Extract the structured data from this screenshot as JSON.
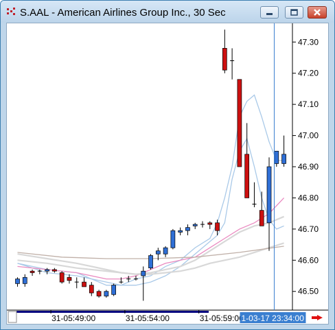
{
  "window": {
    "title": "S.AAL - American Airlines Group Inc., 30 Sec",
    "app_icon": "chart-app-icon",
    "controls": [
      "minimize-icon",
      "maximize-icon",
      "close-icon"
    ]
  },
  "colors": {
    "up_candle": "#2f6fd6",
    "down_candle": "#cc1010",
    "ma_light_blue": "#a9c9e8",
    "ma_pink": "#ea8ac0",
    "ma_gray": "#d8d8d8",
    "ma_brown": "#c0b0a8",
    "cursor_line": "#3a7fd0",
    "time_badge_bg": "#3a7fd0",
    "scroll_arrow": "#e01010"
  },
  "chart_data": {
    "type": "candlestick",
    "ylim": [
      46.44,
      47.36
    ],
    "yticks": [
      "47.30",
      "47.20",
      "47.10",
      "47.00",
      "46.90",
      "46.80",
      "46.70",
      "46.60",
      "46.50"
    ],
    "xticks": [
      "31-05:49:00",
      "31-05:54:00",
      "31-05:59:00"
    ],
    "xtick_index": [
      4.6,
      14.6,
      24.6
    ],
    "cursor_index": 34.6,
    "cursor_time": "1-03-17 23:34:00",
    "candles": [
      {
        "o": 46.525,
        "h": 46.545,
        "l": 46.515,
        "c": 46.54
      },
      {
        "o": 46.525,
        "h": 46.555,
        "l": 46.515,
        "c": 46.545
      },
      {
        "o": 46.565,
        "h": 46.57,
        "l": 46.55,
        "c": 46.56
      },
      {
        "o": 46.565,
        "h": 46.57,
        "l": 46.555,
        "c": 46.565
      },
      {
        "o": 46.565,
        "h": 46.575,
        "l": 46.555,
        "c": 46.57
      },
      {
        "o": 46.57,
        "h": 46.575,
        "l": 46.56,
        "c": 46.565
      },
      {
        "o": 46.56,
        "h": 46.565,
        "l": 46.525,
        "c": 46.53
      },
      {
        "o": 46.545,
        "h": 46.555,
        "l": 46.525,
        "c": 46.535
      },
      {
        "o": 46.53,
        "h": 46.545,
        "l": 46.51,
        "c": 46.53
      },
      {
        "o": 46.53,
        "h": 46.545,
        "l": 46.515,
        "c": 46.515
      },
      {
        "o": 46.52,
        "h": 46.53,
        "l": 46.485,
        "c": 46.495
      },
      {
        "o": 46.5,
        "h": 46.505,
        "l": 46.48,
        "c": 46.485
      },
      {
        "o": 46.485,
        "h": 46.505,
        "l": 46.48,
        "c": 46.5
      },
      {
        "o": 46.49,
        "h": 46.525,
        "l": 46.485,
        "c": 46.52
      },
      {
        "o": 46.53,
        "h": 46.545,
        "l": 46.525,
        "c": 46.53
      },
      {
        "o": 46.54,
        "h": 46.55,
        "l": 46.53,
        "c": 46.54
      },
      {
        "o": 46.54,
        "h": 46.55,
        "l": 46.535,
        "c": 46.54
      },
      {
        "o": 46.55,
        "h": 46.58,
        "l": 46.47,
        "c": 46.565
      },
      {
        "o": 46.575,
        "h": 46.62,
        "l": 46.57,
        "c": 46.615
      },
      {
        "o": 46.62,
        "h": 46.64,
        "l": 46.6,
        "c": 46.63
      },
      {
        "o": 46.62,
        "h": 46.645,
        "l": 46.61,
        "c": 46.64
      },
      {
        "o": 46.64,
        "h": 46.7,
        "l": 46.635,
        "c": 46.695
      },
      {
        "o": 46.69,
        "h": 46.705,
        "l": 46.68,
        "c": 46.695
      },
      {
        "o": 46.695,
        "h": 46.715,
        "l": 46.68,
        "c": 46.705
      },
      {
        "o": 46.71,
        "h": 46.72,
        "l": 46.7,
        "c": 46.715
      },
      {
        "o": 46.715,
        "h": 46.725,
        "l": 46.705,
        "c": 46.715
      },
      {
        "o": 46.72,
        "h": 46.725,
        "l": 46.7,
        "c": 46.715
      },
      {
        "o": 46.72,
        "h": 46.73,
        "l": 46.68,
        "c": 46.695
      },
      {
        "o": 47.28,
        "h": 47.34,
        "l": 47.2,
        "c": 47.21
      },
      {
        "o": 47.24,
        "h": 47.28,
        "l": 47.18,
        "c": 47.24
      },
      {
        "o": 47.18,
        "h": 47.18,
        "l": 46.9,
        "c": 46.9
      },
      {
        "o": 46.94,
        "h": 47.04,
        "l": 46.8,
        "c": 46.8
      },
      {
        "o": 46.78,
        "h": 46.85,
        "l": 46.77,
        "c": 46.78
      },
      {
        "o": 46.76,
        "h": 46.82,
        "l": 46.71,
        "c": 46.71
      },
      {
        "o": 46.72,
        "h": 46.93,
        "l": 46.63,
        "c": 46.9
      },
      {
        "o": 46.91,
        "h": 46.95,
        "l": 46.9,
        "c": 46.95
      },
      {
        "o": 46.91,
        "h": 47.0,
        "l": 46.9,
        "c": 46.94
      }
    ],
    "series": [
      {
        "color": "#a9c9e8",
        "points": [
          [
            0,
            46.59
          ],
          [
            4,
            46.57
          ],
          [
            8,
            46.56
          ],
          [
            12,
            46.52
          ],
          [
            14,
            46.52
          ],
          [
            16,
            46.54
          ],
          [
            18,
            46.55
          ],
          [
            20,
            46.58
          ],
          [
            22,
            46.6
          ],
          [
            24,
            46.64
          ],
          [
            26,
            46.67
          ],
          [
            27,
            46.72
          ],
          [
            28,
            46.8
          ],
          [
            29,
            46.9
          ],
          [
            30,
            47.06
          ],
          [
            31,
            47.11
          ],
          [
            32,
            47.13
          ],
          [
            33,
            47.06
          ],
          [
            34,
            46.98
          ],
          [
            35,
            46.92
          ],
          [
            36,
            46.92
          ]
        ]
      },
      {
        "color": "#a9c9e8",
        "points": [
          [
            0,
            46.59
          ],
          [
            4,
            46.56
          ],
          [
            8,
            46.55
          ],
          [
            12,
            46.53
          ],
          [
            14,
            46.52
          ],
          [
            16,
            46.52
          ],
          [
            18,
            46.53
          ],
          [
            20,
            46.55
          ],
          [
            22,
            46.58
          ],
          [
            24,
            46.62
          ],
          [
            26,
            46.66
          ],
          [
            27,
            46.68
          ],
          [
            28,
            46.72
          ],
          [
            29,
            46.86
          ],
          [
            30,
            46.95
          ],
          [
            31,
            46.99
          ],
          [
            32,
            46.9
          ],
          [
            33,
            46.8
          ],
          [
            34,
            46.73
          ],
          [
            35,
            46.7
          ],
          [
            36,
            46.71
          ]
        ]
      },
      {
        "color": "#ea8ac0",
        "points": [
          [
            0,
            46.58
          ],
          [
            4,
            46.57
          ],
          [
            8,
            46.56
          ],
          [
            12,
            46.54
          ],
          [
            14,
            46.54
          ],
          [
            16,
            46.55
          ],
          [
            18,
            46.57
          ],
          [
            20,
            46.59
          ],
          [
            22,
            46.6
          ],
          [
            24,
            46.61
          ],
          [
            26,
            46.64
          ],
          [
            28,
            46.67
          ],
          [
            30,
            46.7
          ],
          [
            32,
            46.72
          ],
          [
            34,
            46.75
          ],
          [
            36,
            46.8
          ]
        ]
      },
      {
        "color": "#d8d8d8",
        "points": [
          [
            0,
            46.62
          ],
          [
            4,
            46.605
          ],
          [
            8,
            46.59
          ],
          [
            12,
            46.57
          ],
          [
            14,
            46.56
          ],
          [
            16,
            46.555
          ],
          [
            18,
            46.56
          ],
          [
            20,
            46.57
          ],
          [
            22,
            46.58
          ],
          [
            24,
            46.6
          ],
          [
            26,
            46.63
          ],
          [
            28,
            46.66
          ],
          [
            30,
            46.69
          ],
          [
            32,
            46.71
          ],
          [
            34,
            46.72
          ],
          [
            36,
            46.74
          ]
        ]
      },
      {
        "color": "#d8d8d8",
        "points": [
          [
            0,
            46.6
          ],
          [
            4,
            46.59
          ],
          [
            8,
            46.575
          ],
          [
            12,
            46.565
          ],
          [
            14,
            46.56
          ],
          [
            16,
            46.555
          ],
          [
            18,
            46.555
          ],
          [
            20,
            46.56
          ],
          [
            22,
            46.565
          ],
          [
            24,
            46.575
          ],
          [
            26,
            46.59
          ],
          [
            28,
            46.6
          ],
          [
            30,
            46.61
          ],
          [
            32,
            46.625
          ],
          [
            34,
            46.64
          ],
          [
            36,
            46.655
          ]
        ]
      },
      {
        "color": "#c0b0a8",
        "points": [
          [
            0,
            46.625
          ],
          [
            6,
            46.61
          ],
          [
            12,
            46.605
          ],
          [
            18,
            46.605
          ],
          [
            24,
            46.61
          ],
          [
            30,
            46.625
          ],
          [
            36,
            46.645
          ]
        ]
      }
    ]
  }
}
